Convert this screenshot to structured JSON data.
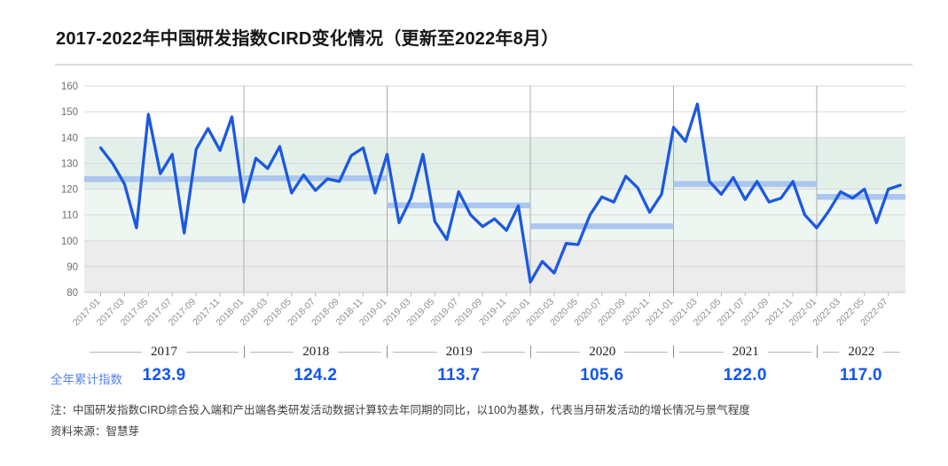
{
  "title": "2017-2022年中国研发指数CIRD变化情况（更新至2022年8月）",
  "annual_row": {
    "label": "全年累计指数"
  },
  "years": [
    {
      "label": "2017",
      "annual_index": "123.9"
    },
    {
      "label": "2018",
      "annual_index": "124.2"
    },
    {
      "label": "2019",
      "annual_index": "113.7"
    },
    {
      "label": "2020",
      "annual_index": "105.6"
    },
    {
      "label": "2021",
      "annual_index": "122.0"
    },
    {
      "label": "2022",
      "annual_index": "117.0"
    }
  ],
  "footnotes": {
    "note": "注：中国研发指数CIRD综合投入端和产出端各类研发活动数据计算较去年同期的同比，以100为基数，代表当月研发活动的增长情况与景气程度",
    "source": "资料来源：智慧芽"
  },
  "colors": {
    "line": "#1c58e2",
    "annual_band": "#a8c3ef",
    "annual_value_text": "#1155ee",
    "annual_label_text": "#5b84ee",
    "zone_upper_mint": "#e2f0e9",
    "zone_lower_mint": "#edf6f1",
    "zone_gray": "#ececec",
    "gridline": "#d9d9d9",
    "baseline": "#c6c6c6",
    "year_divider_line": "#ababab",
    "x_tick_label": "#8e8e8e",
    "y_tick_label": "#6f6f6f"
  },
  "chart_data": {
    "type": "line",
    "title": "2017-2022年中国研发指数CIRD变化情况（更新至2022年8月）",
    "xlabel": "",
    "ylabel": "",
    "ylim": [
      80,
      160
    ],
    "y_ticks": [
      160,
      150,
      140,
      130,
      120,
      110,
      100,
      90,
      80
    ],
    "grid": true,
    "legend": "none",
    "x_tick_labels": [
      "2017-01",
      "2017-03",
      "2017-05",
      "2017-07",
      "2017-09",
      "2017-11",
      "2018-01",
      "2018-03",
      "2018-05",
      "2018-07",
      "2018-09",
      "2018-11",
      "2019-01",
      "2019-03",
      "2019-05",
      "2019-07",
      "2019-09",
      "2019-11",
      "2020-01",
      "2020-03",
      "2020-05",
      "2020-07",
      "2020-09",
      "2020-11",
      "2021-01",
      "2021-03",
      "2021-05",
      "2021-07",
      "2021-09",
      "2021-11",
      "2022-01",
      "2022-03",
      "2022-05",
      "2022-07"
    ],
    "x": [
      "2017-01",
      "2017-02",
      "2017-03",
      "2017-04",
      "2017-05",
      "2017-06",
      "2017-07",
      "2017-08",
      "2017-09",
      "2017-10",
      "2017-11",
      "2017-12",
      "2018-01",
      "2018-02",
      "2018-03",
      "2018-04",
      "2018-05",
      "2018-06",
      "2018-07",
      "2018-08",
      "2018-09",
      "2018-10",
      "2018-11",
      "2018-12",
      "2019-01",
      "2019-02",
      "2019-03",
      "2019-04",
      "2019-05",
      "2019-06",
      "2019-07",
      "2019-08",
      "2019-09",
      "2019-10",
      "2019-11",
      "2019-12",
      "2020-01",
      "2020-02",
      "2020-03",
      "2020-04",
      "2020-05",
      "2020-06",
      "2020-07",
      "2020-08",
      "2020-09",
      "2020-10",
      "2020-11",
      "2020-12",
      "2021-01",
      "2021-02",
      "2021-03",
      "2021-04",
      "2021-05",
      "2021-06",
      "2021-07",
      "2021-08",
      "2021-09",
      "2021-10",
      "2021-11",
      "2021-12",
      "2022-01",
      "2022-02",
      "2022-03",
      "2022-04",
      "2022-05",
      "2022-06",
      "2022-07",
      "2022-08"
    ],
    "series": [
      {
        "name": "中国研发指数CIRD（月度）",
        "values": [
          136,
          130,
          122,
          105,
          149,
          126,
          133.5,
          103,
          135.5,
          143.5,
          135,
          148,
          115,
          132,
          128,
          136.5,
          118.5,
          125.5,
          119.5,
          124,
          123,
          133,
          136,
          118.5,
          133.5,
          107,
          116.5,
          133.5,
          107.5,
          100.5,
          119,
          110,
          105.5,
          108.5,
          104,
          113.5,
          84,
          92,
          87.5,
          99,
          98.5,
          110,
          117,
          115,
          125,
          120.5,
          111,
          118,
          144,
          138.5,
          153,
          123,
          118,
          124.5,
          116,
          123,
          115,
          116.5,
          123,
          110,
          105,
          111.5,
          119,
          116.5,
          120,
          107,
          120,
          121.5
        ]
      }
    ],
    "annual_bands": [
      {
        "year": "2017",
        "value": 123.9
      },
      {
        "year": "2018",
        "value": 124.2
      },
      {
        "year": "2019",
        "value": 113.7
      },
      {
        "year": "2020",
        "value": 105.6
      },
      {
        "year": "2021",
        "value": 122.0
      },
      {
        "year": "2022",
        "value": 117.0
      }
    ],
    "background_zones": [
      {
        "from": 120,
        "to": 140,
        "color_key": "zone_upper_mint"
      },
      {
        "from": 100,
        "to": 120,
        "color_key": "zone_lower_mint"
      },
      {
        "from": 80,
        "to": 100,
        "color_key": "zone_gray"
      }
    ]
  }
}
